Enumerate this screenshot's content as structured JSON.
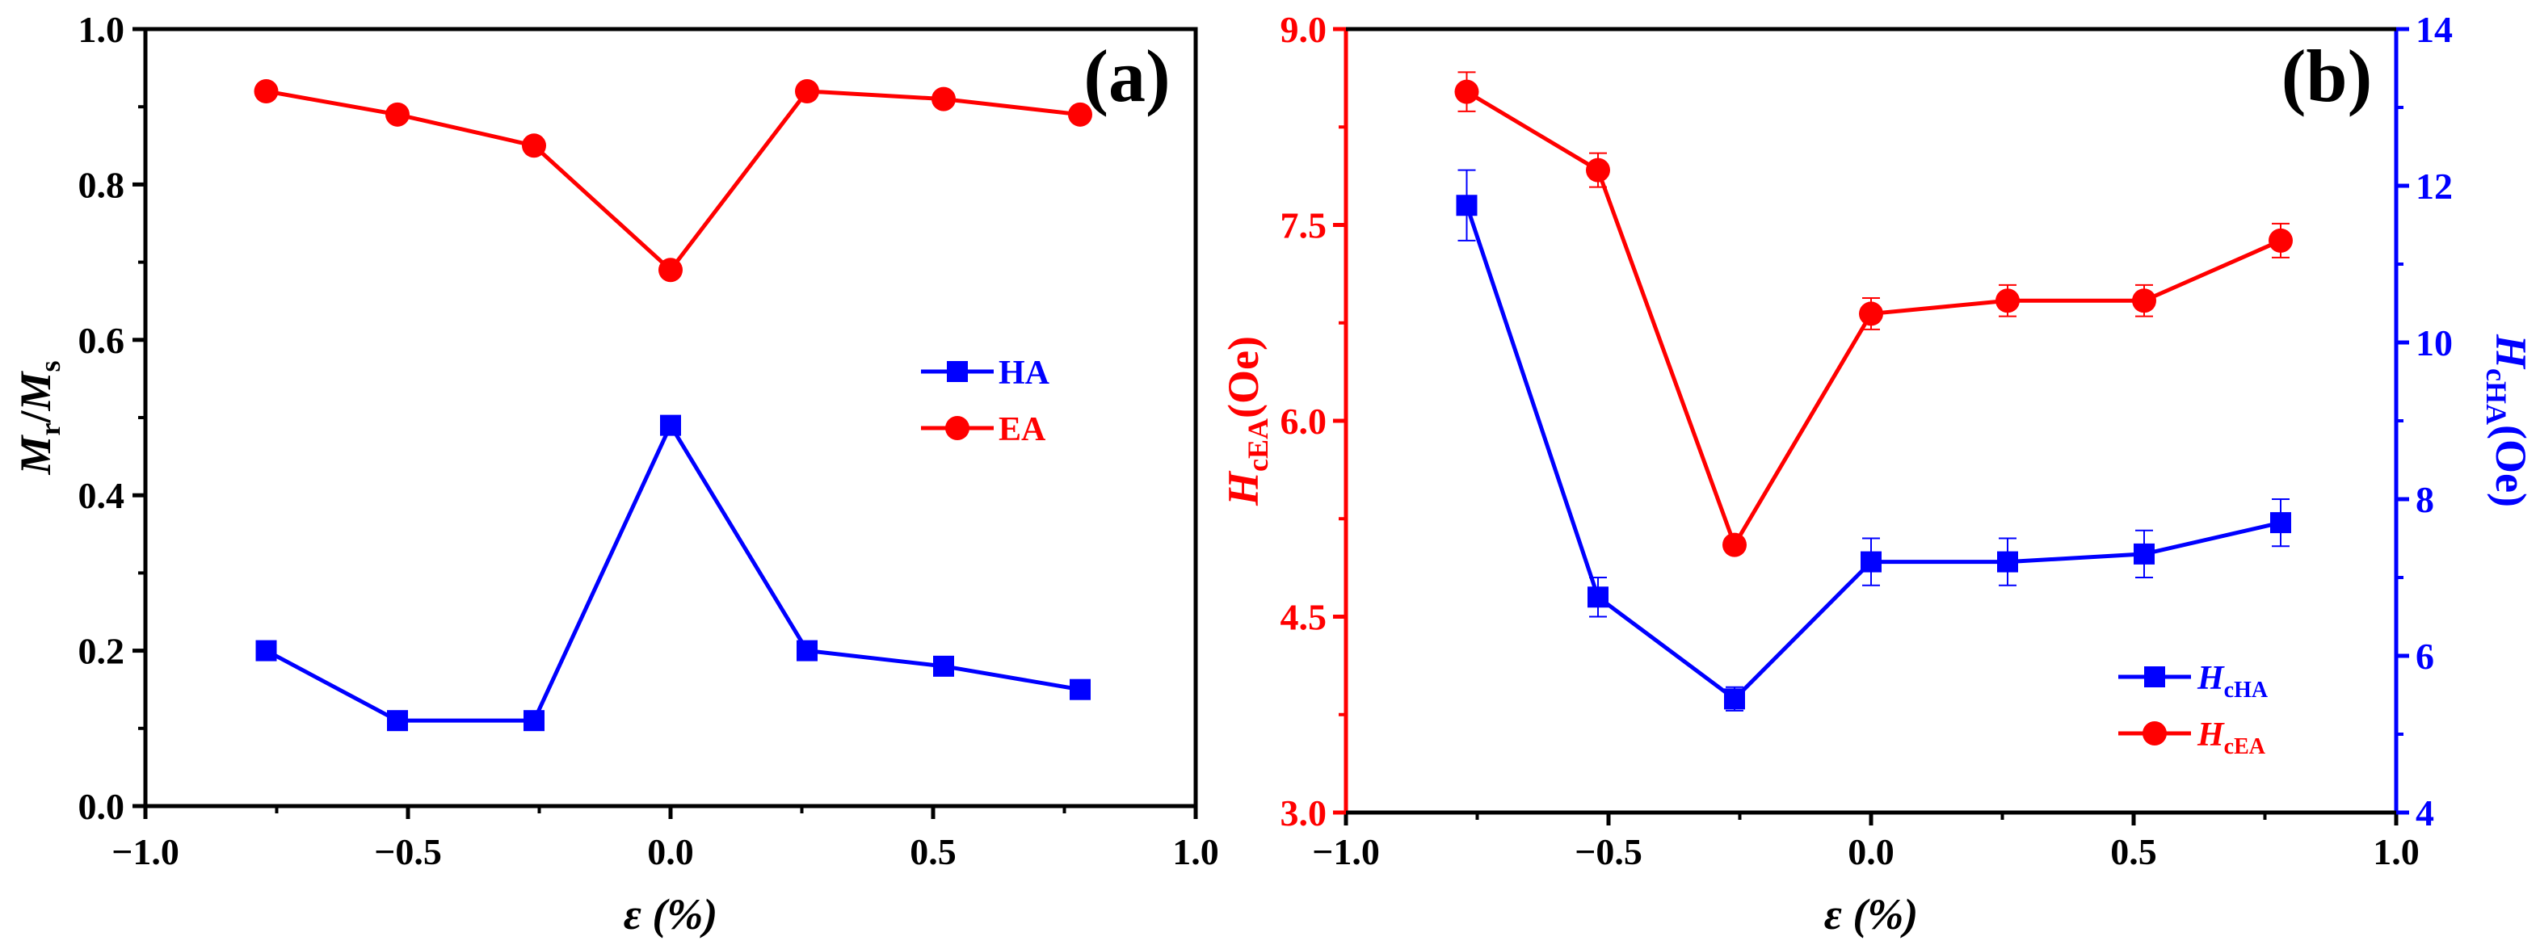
{
  "chart_data": [
    {
      "type": "line",
      "panel_label": "(a)",
      "xlabel": "ε (%)",
      "ylabel": {
        "main": "M",
        "sub1": "r",
        "slash": "/",
        "main2": "M",
        "sub2": "s"
      },
      "xlim": [
        -1.0,
        1.0
      ],
      "ylim": [
        0.0,
        1.0
      ],
      "xticks": [
        "−1.0",
        "−0.5",
        "0.0",
        "0.5",
        "1.0"
      ],
      "xtick_values": [
        -1.0,
        -0.5,
        0.0,
        0.5,
        1.0
      ],
      "yticks": [
        "0.0",
        "0.2",
        "0.4",
        "0.6",
        "0.8",
        "1.0"
      ],
      "ytick_values": [
        0.0,
        0.2,
        0.4,
        0.6,
        0.8,
        1.0
      ],
      "x": [
        -0.77,
        -0.52,
        -0.26,
        0.0,
        0.26,
        0.52,
        0.78
      ],
      "series": [
        {
          "name": "HA",
          "color": "#0000ff",
          "marker": "square",
          "values": [
            0.2,
            0.11,
            0.11,
            0.49,
            0.2,
            0.18,
            0.15
          ]
        },
        {
          "name": "EA",
          "color": "#ff0000",
          "marker": "circle",
          "values": [
            0.92,
            0.89,
            0.85,
            0.69,
            0.92,
            0.91,
            0.89
          ]
        }
      ],
      "legend_position": "center-right",
      "grid": false
    },
    {
      "type": "line",
      "panel_label": "(b)",
      "xlabel": "ε (%)",
      "ylabel_left": {
        "main": "H",
        "sub": "cEA",
        "unit": "(Oe)"
      },
      "ylabel_right": {
        "main": "H",
        "sub": "cHA",
        "unit": "(Oe)"
      },
      "xlim": [
        -1.0,
        1.0
      ],
      "ylim_left": [
        3.0,
        9.0
      ],
      "ylim_right": [
        4,
        14
      ],
      "xticks": [
        "−1.0",
        "−0.5",
        "0.0",
        "0.5",
        "1.0"
      ],
      "xtick_values": [
        -1.0,
        -0.5,
        0.0,
        0.5,
        1.0
      ],
      "yticks_left": [
        "3.0",
        "4.5",
        "6.0",
        "7.5",
        "9.0"
      ],
      "ytick_values_left": [
        3.0,
        4.5,
        6.0,
        7.5,
        9.0
      ],
      "yticks_right": [
        "4",
        "6",
        "8",
        "10",
        "12",
        "14"
      ],
      "ytick_values_right": [
        4,
        6,
        8,
        10,
        12,
        14
      ],
      "x": [
        -0.77,
        -0.52,
        -0.26,
        0.0,
        0.26,
        0.52,
        0.78
      ],
      "series": [
        {
          "name": "H_cHA",
          "label_main": "H",
          "label_sub": "cHA",
          "axis": "right",
          "color": "#0000ff",
          "marker": "square",
          "values": [
            11.75,
            6.75,
            5.45,
            7.2,
            7.2,
            7.3,
            7.7
          ],
          "errors": [
            0.45,
            0.25,
            0.15,
            0.3,
            0.3,
            0.3,
            0.3
          ]
        },
        {
          "name": "H_cEA",
          "label_main": "H",
          "label_sub": "cEA",
          "axis": "left",
          "color": "#ff0000",
          "marker": "circle",
          "values": [
            8.52,
            7.92,
            5.05,
            6.82,
            6.92,
            6.92,
            7.38
          ],
          "errors": [
            0.15,
            0.13,
            0.05,
            0.12,
            0.12,
            0.12,
            0.13
          ]
        }
      ],
      "legend_position": "bottom-right",
      "grid": false
    }
  ]
}
